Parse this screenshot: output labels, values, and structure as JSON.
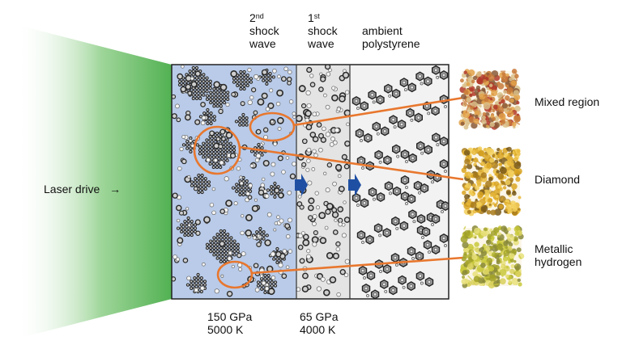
{
  "header": {
    "wave2": {
      "ordinal": "2",
      "suffix": "nd",
      "line2": "shock",
      "line3": "wave"
    },
    "wave1": {
      "ordinal": "1",
      "suffix": "st",
      "line2": "shock",
      "line3": "wave"
    },
    "ambient": {
      "line1": "ambient",
      "line2": "polystyrene"
    }
  },
  "laser": {
    "label": "Laser drive",
    "arrow": "→"
  },
  "regions": {
    "region2": {
      "pressure": "150 GPa",
      "temperature": "5000 K"
    },
    "region1": {
      "pressure": "65 GPa",
      "temperature": "4000 K"
    }
  },
  "insets": [
    {
      "label": "Mixed region"
    },
    {
      "label": "Diamond"
    },
    {
      "label_line1": "Metallic",
      "label_line2": "hydrogen"
    }
  ],
  "colors": {
    "laser_green": "#66c266",
    "shocked2_bg": "#b9cbe9",
    "shocked1_bg": "#e4e4e4",
    "ambient_bg": "#f2f2f2",
    "callout_orange": "#e8772e",
    "arrow_blue": "#1f4fa3"
  }
}
